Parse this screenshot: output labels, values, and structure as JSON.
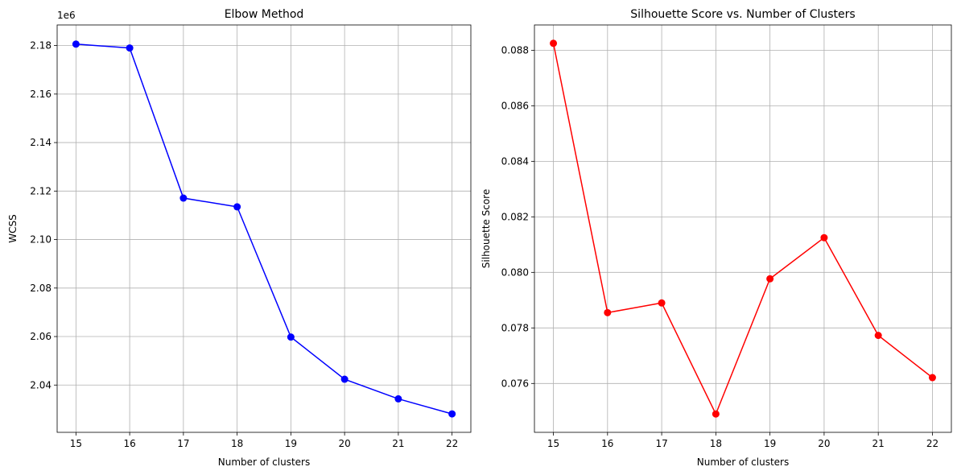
{
  "chart_data": [
    {
      "type": "line",
      "title": "Elbow Method",
      "xlabel": "Number of clusters",
      "ylabel": "WCSS",
      "y_offset_label": "1e6",
      "x": [
        15,
        16,
        17,
        18,
        19,
        20,
        21,
        22
      ],
      "xticks": [
        "15",
        "16",
        "17",
        "18",
        "19",
        "20",
        "21",
        "22"
      ],
      "yticks": [
        2.04,
        2.06,
        2.08,
        2.1,
        2.12,
        2.14,
        2.16,
        2.18
      ],
      "ytick_labels": [
        "2.04",
        "2.06",
        "2.08",
        "2.10",
        "2.12",
        "2.14",
        "2.16",
        "2.18"
      ],
      "xlim": [
        14.65,
        22.35
      ],
      "ylim": [
        2.0205,
        2.1885
      ],
      "grid": true,
      "series": [
        {
          "color": "#0000ff",
          "marker": "circle",
          "values": [
            2.1806,
            2.179,
            2.1171,
            2.1135,
            2.0598,
            2.0424,
            2.0343,
            2.0281
          ]
        }
      ]
    },
    {
      "type": "line",
      "title": "Silhouette Score vs. Number of Clusters",
      "xlabel": "Number of clusters",
      "ylabel": "Silhouette Score",
      "y_offset_label": "",
      "x": [
        15,
        16,
        17,
        18,
        19,
        20,
        21,
        22
      ],
      "xticks": [
        "15",
        "16",
        "17",
        "18",
        "19",
        "20",
        "21",
        "22"
      ],
      "yticks": [
        0.076,
        0.078,
        0.08,
        0.082,
        0.084,
        0.086,
        0.088
      ],
      "ytick_labels": [
        "0.076",
        "0.078",
        "0.080",
        "0.082",
        "0.084",
        "0.086",
        "0.088"
      ],
      "xlim": [
        14.65,
        22.35
      ],
      "ylim": [
        0.07424,
        0.08891
      ],
      "grid": true,
      "series": [
        {
          "color": "#ff0000",
          "marker": "circle",
          "values": [
            0.08825,
            0.07855,
            0.0789,
            0.0749,
            0.07977,
            0.08125,
            0.07773,
            0.07621
          ]
        }
      ]
    }
  ]
}
